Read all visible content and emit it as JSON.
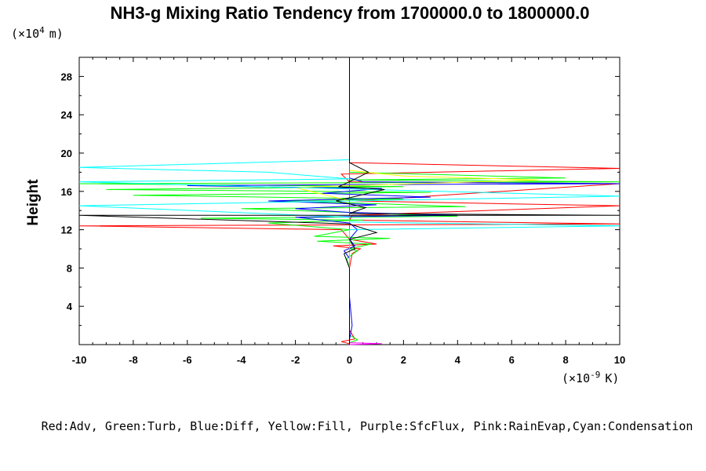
{
  "chart_data": {
    "type": "line",
    "title": "NH3-g Mixing Ratio Tendency from 1700000.0 to 1800000.0",
    "ylabel": "Height",
    "y_scale_label": "(×10",
    "y_scale_exp": "4",
    "y_scale_unit": "m)",
    "x_scale_label": "(×10",
    "x_scale_exp": "-9",
    "x_scale_unit": "K)",
    "xlim": [
      -10,
      10
    ],
    "ylim": [
      0,
      30
    ],
    "xticks": [
      "-10",
      "-8",
      "-6",
      "-4",
      "-2",
      "0",
      "2",
      "4",
      "6",
      "8",
      "10"
    ],
    "yticks": [
      "4",
      "8",
      "12",
      "16",
      "20",
      "24",
      "28"
    ],
    "legend_text": "Red:Adv, Green:Turb, Blue:Diff, Yellow:Fill, Purple:SfcFlux, Pink:RainEvap,Cyan:Condensation",
    "series": [
      {
        "name": "Adv",
        "color": "#ff0000",
        "points": [
          [
            0,
            0.1
          ],
          [
            -0.3,
            0.3
          ],
          [
            0.2,
            0.6
          ],
          [
            0,
            1.5
          ],
          [
            0,
            5
          ],
          [
            0,
            8
          ],
          [
            0.1,
            9.5
          ],
          [
            0.4,
            10
          ],
          [
            -0.6,
            10.3
          ],
          [
            1,
            10.5
          ],
          [
            0,
            11
          ],
          [
            -0.3,
            12
          ],
          [
            -10,
            12.4
          ],
          [
            0,
            12.5
          ],
          [
            10,
            12.6
          ],
          [
            0,
            13
          ],
          [
            0.1,
            13.5
          ],
          [
            10,
            14.5
          ],
          [
            6,
            14.7
          ],
          [
            0.2,
            15
          ],
          [
            10,
            16.8
          ],
          [
            0,
            17
          ],
          [
            -0.3,
            17.8
          ],
          [
            10,
            18.4
          ],
          [
            0,
            19
          ],
          [
            0,
            19.5
          ],
          [
            0,
            30
          ]
        ]
      },
      {
        "name": "Turb",
        "color": "#00ff00",
        "points": [
          [
            0,
            0.2
          ],
          [
            0.3,
            0.5
          ],
          [
            0,
            1
          ],
          [
            0,
            8
          ],
          [
            -0.1,
            9
          ],
          [
            0.3,
            9.8
          ],
          [
            0,
            10
          ],
          [
            0.8,
            10.5
          ],
          [
            -1.2,
            10.8
          ],
          [
            1.5,
            11.1
          ],
          [
            -1.3,
            11.3
          ],
          [
            0,
            12
          ],
          [
            -3,
            12.7
          ],
          [
            0.5,
            13
          ],
          [
            -5.5,
            13.2
          ],
          [
            4,
            13.4
          ],
          [
            0,
            13.8
          ],
          [
            -4,
            14.2
          ],
          [
            4.3,
            14.4
          ],
          [
            0,
            14.8
          ],
          [
            -3,
            15
          ],
          [
            2,
            15.2
          ],
          [
            -8,
            15.6
          ],
          [
            3,
            15.9
          ],
          [
            -9,
            16.2
          ],
          [
            2,
            16.5
          ],
          [
            -10,
            16.8
          ],
          [
            10,
            17
          ],
          [
            0,
            17.2
          ],
          [
            8,
            17.4
          ],
          [
            0,
            18
          ],
          [
            0,
            30
          ]
        ]
      },
      {
        "name": "Diff",
        "color": "#0000ff",
        "points": [
          [
            0,
            0.5
          ],
          [
            0.1,
            2
          ],
          [
            0,
            5
          ],
          [
            0,
            9
          ],
          [
            -0.2,
            9.8
          ],
          [
            0.2,
            10.3
          ],
          [
            0,
            11
          ],
          [
            0.3,
            12
          ],
          [
            0,
            12.7
          ],
          [
            -2,
            13.3
          ],
          [
            4,
            13.5
          ],
          [
            0,
            13.8
          ],
          [
            -2,
            14.2
          ],
          [
            1,
            14.6
          ],
          [
            -3,
            15
          ],
          [
            3,
            15.4
          ],
          [
            -1,
            15.8
          ],
          [
            1.2,
            16.3
          ],
          [
            -6,
            16.6
          ],
          [
            -0.5,
            16.7
          ],
          [
            10,
            16.8
          ],
          [
            0.5,
            17
          ],
          [
            0,
            17.4
          ],
          [
            0,
            18
          ],
          [
            0,
            30
          ]
        ]
      },
      {
        "name": "Fill",
        "color": "#ffff00",
        "points": [
          [
            0,
            0
          ],
          [
            0,
            10
          ],
          [
            0,
            15
          ],
          [
            -2,
            16.4
          ],
          [
            0,
            16.6
          ],
          [
            7,
            17.2
          ],
          [
            2,
            17.6
          ],
          [
            0,
            18.2
          ],
          [
            0,
            19
          ],
          [
            0,
            30
          ]
        ]
      },
      {
        "name": "SfcFlux",
        "color": "#800080",
        "points": [
          [
            0,
            0
          ],
          [
            0,
            0.2
          ],
          [
            0,
            30
          ]
        ]
      },
      {
        "name": "RainEvap",
        "color": "#ff00ff",
        "points": [
          [
            0,
            0
          ],
          [
            1.2,
            0.1
          ],
          [
            0,
            0.2
          ],
          [
            0,
            30
          ]
        ]
      },
      {
        "name": "Condensation",
        "color": "#00ffff",
        "points": [
          [
            0,
            0
          ],
          [
            0,
            12
          ],
          [
            10,
            12.4
          ],
          [
            0,
            12.8
          ],
          [
            0,
            13.3
          ],
          [
            -10,
            14.5
          ],
          [
            0,
            15
          ],
          [
            10,
            15.5
          ],
          [
            -10,
            17
          ],
          [
            0,
            17.3
          ],
          [
            -3,
            18
          ],
          [
            -10,
            18.5
          ],
          [
            0,
            19.3
          ],
          [
            0,
            19.6
          ],
          [
            0,
            30
          ]
        ]
      },
      {
        "name": "",
        "color": "#000000",
        "points": [
          [
            0,
            0
          ],
          [
            0,
            2
          ],
          [
            0,
            8
          ],
          [
            -0.2,
            9.5
          ],
          [
            0.2,
            10
          ],
          [
            0,
            11
          ],
          [
            1,
            11.7
          ],
          [
            0,
            12.6
          ],
          [
            -10,
            13.5
          ],
          [
            10,
            13.5
          ],
          [
            0,
            13.7
          ],
          [
            0.6,
            14.3
          ],
          [
            -0.5,
            15
          ],
          [
            1.3,
            16.2
          ],
          [
            -0.4,
            16.5
          ],
          [
            0,
            17
          ],
          [
            0.7,
            18
          ],
          [
            0,
            19
          ],
          [
            0,
            30
          ]
        ]
      }
    ]
  }
}
